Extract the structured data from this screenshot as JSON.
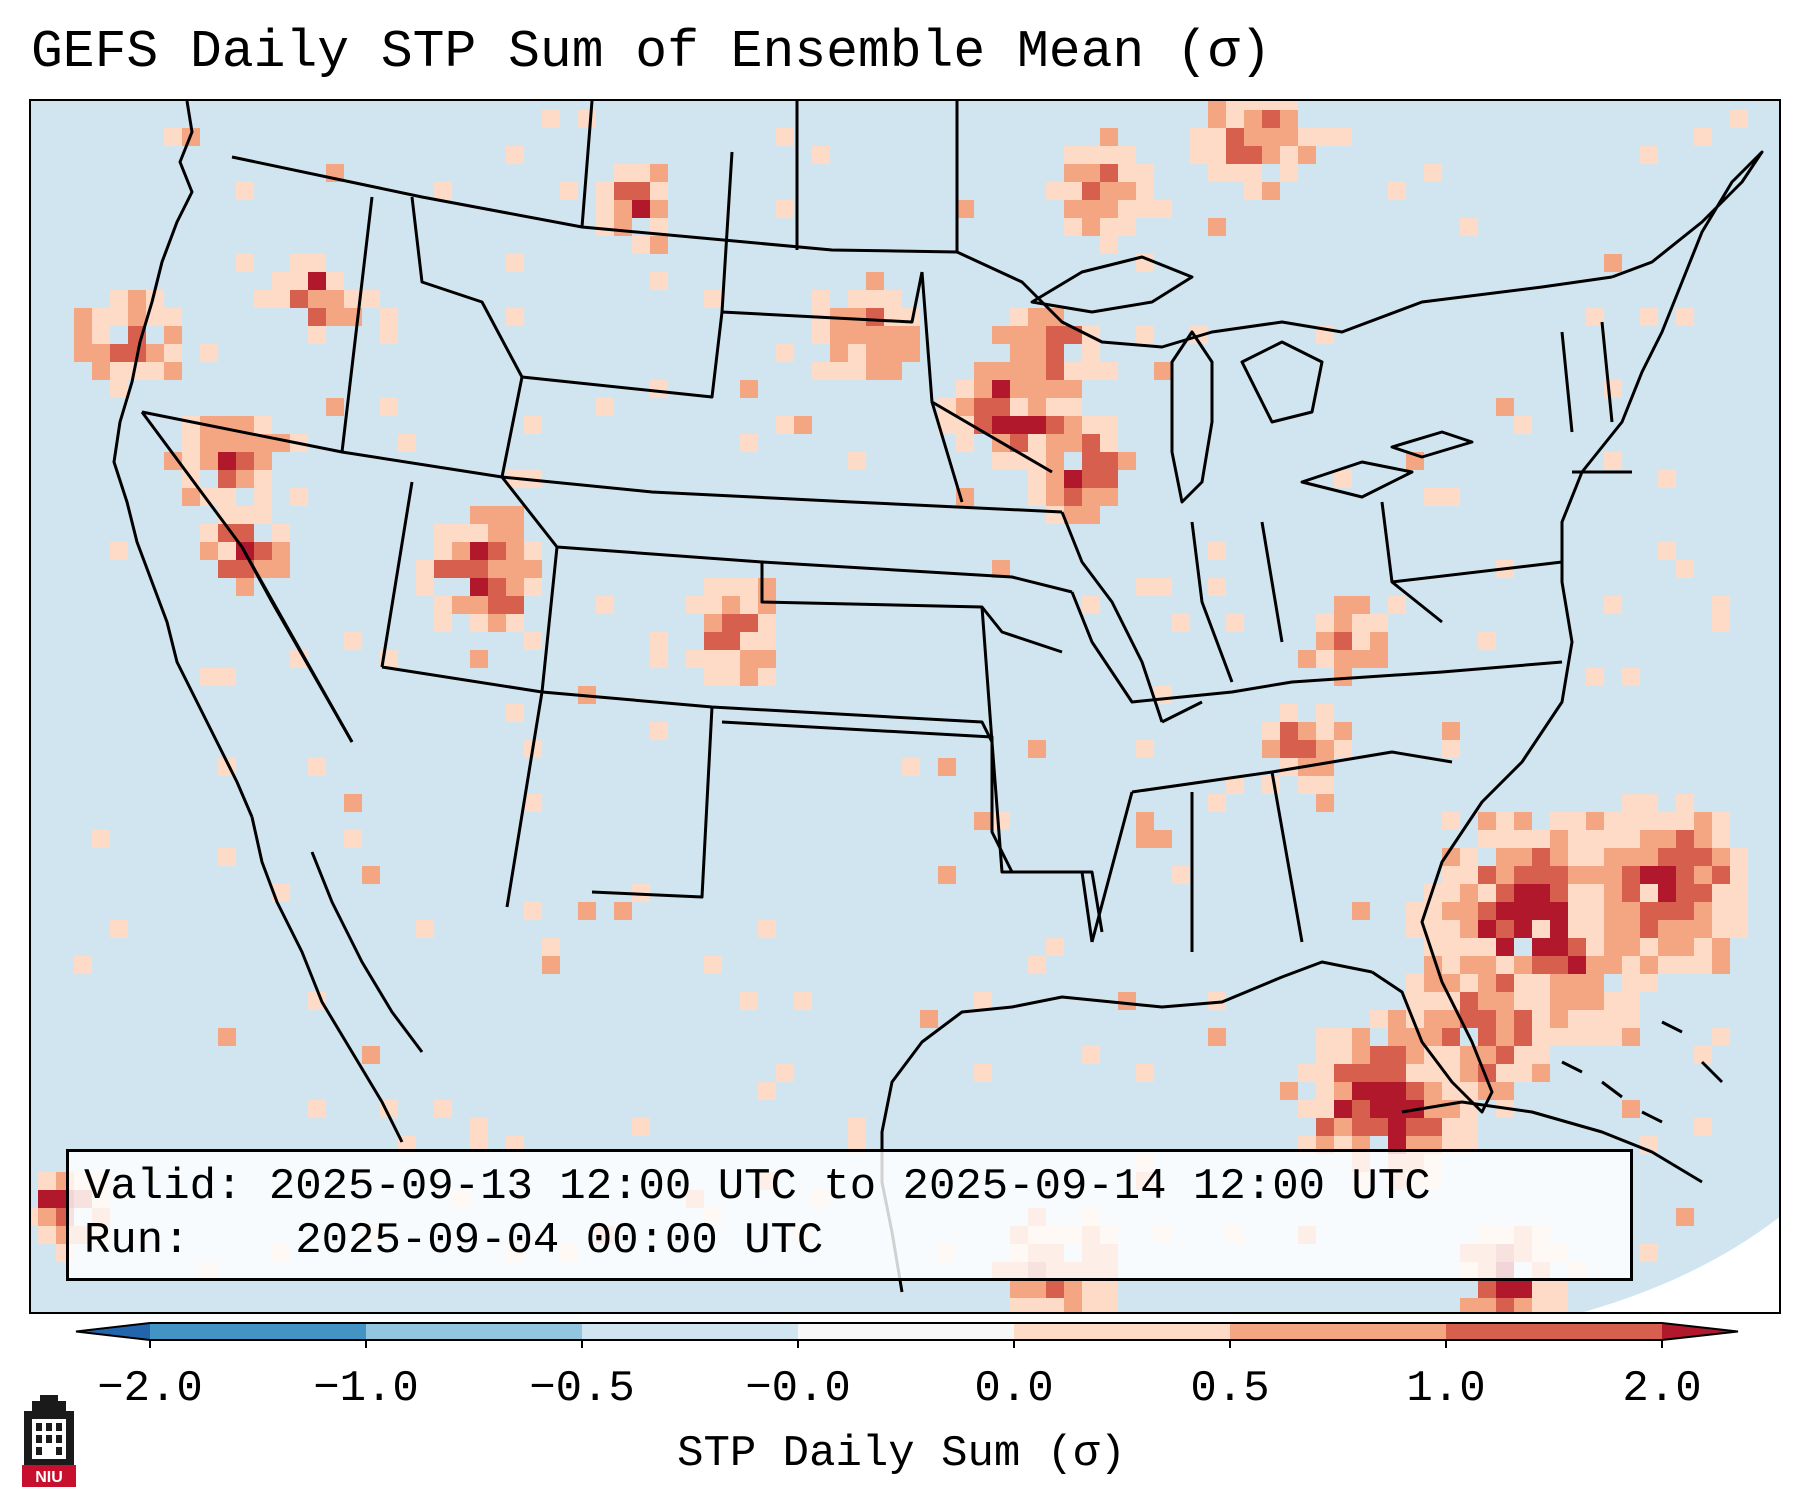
{
  "title": "GEFS Daily STP Sum of Ensemble Mean (σ)",
  "info": {
    "valid_label": "Valid:",
    "valid_value": "2025-09-13 12:00 UTC to 2025-09-14 12:00 UTC",
    "run_label": "Run:",
    "run_value": "2025-09-04 00:00 UTC"
  },
  "colorbar": {
    "label": "STP Daily Sum (σ)",
    "ticks": [
      "−2.0",
      "−1.0",
      "−0.5",
      "−0.0",
      "0.0",
      "0.5",
      "1.0",
      "2.0"
    ],
    "colors": [
      "#4393c3",
      "#92c5de",
      "#d1e5f0",
      "#f7f7f7",
      "#fddbc7",
      "#f4a582",
      "#d6604d",
      "#b2182b"
    ],
    "under_color": "#2166ac",
    "over_color": "#b2182b"
  },
  "map": {
    "background_color": "#d1e5f0",
    "offmap_color": "#ffffff",
    "line_color": "#000000"
  },
  "logo": {
    "text": "NIU",
    "color": "#c8102e"
  }
}
